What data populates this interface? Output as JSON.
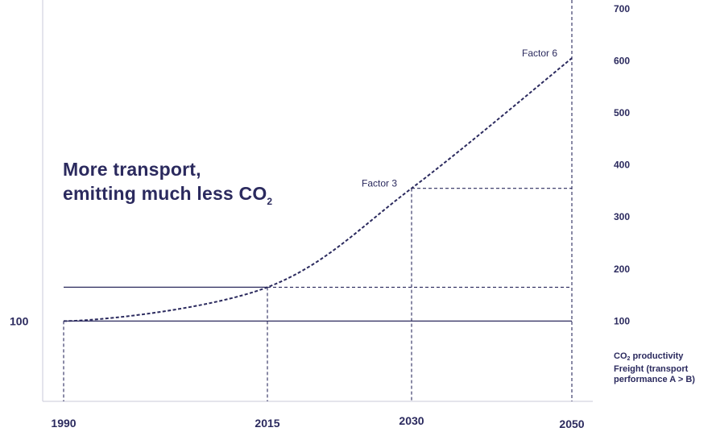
{
  "chart_data": {
    "type": "line",
    "headline": {
      "line1": "More transport,",
      "line2_prefix": "emitting much less CO",
      "line2_sub": "2"
    },
    "x": [
      1990,
      2015,
      2030,
      2050
    ],
    "x_tick_labels": [
      "1990",
      "2015",
      "2030",
      "2050"
    ],
    "xlim": [
      1990,
      2050
    ],
    "ylim": [
      0,
      700
    ],
    "y_ticks": [
      100,
      200,
      300,
      400,
      500,
      600,
      700
    ],
    "y_tick_labels": [
      "100",
      "200",
      "300",
      "400",
      "500",
      "600",
      "700"
    ],
    "left_tick_label": "100",
    "right_axis_label": {
      "prefix": "CO",
      "sub": "2",
      "line1_rest": " productivity",
      "line2": "Freight (transport",
      "line3": "performance A > B)"
    },
    "series": [
      {
        "values": [
          100,
          165,
          355,
          605
        ],
        "style": "dashed-curve"
      }
    ],
    "reference_lines": {
      "baseline": 100,
      "level_2015": 165,
      "level_2030": 355
    },
    "annotations": [
      {
        "text": "Factor 3",
        "x": 2030,
        "y": 355
      },
      {
        "text": "Factor 6",
        "x": 2050,
        "y": 605
      }
    ],
    "colors": {
      "ink": "#2b2a5e",
      "background": "#ffffff"
    }
  }
}
